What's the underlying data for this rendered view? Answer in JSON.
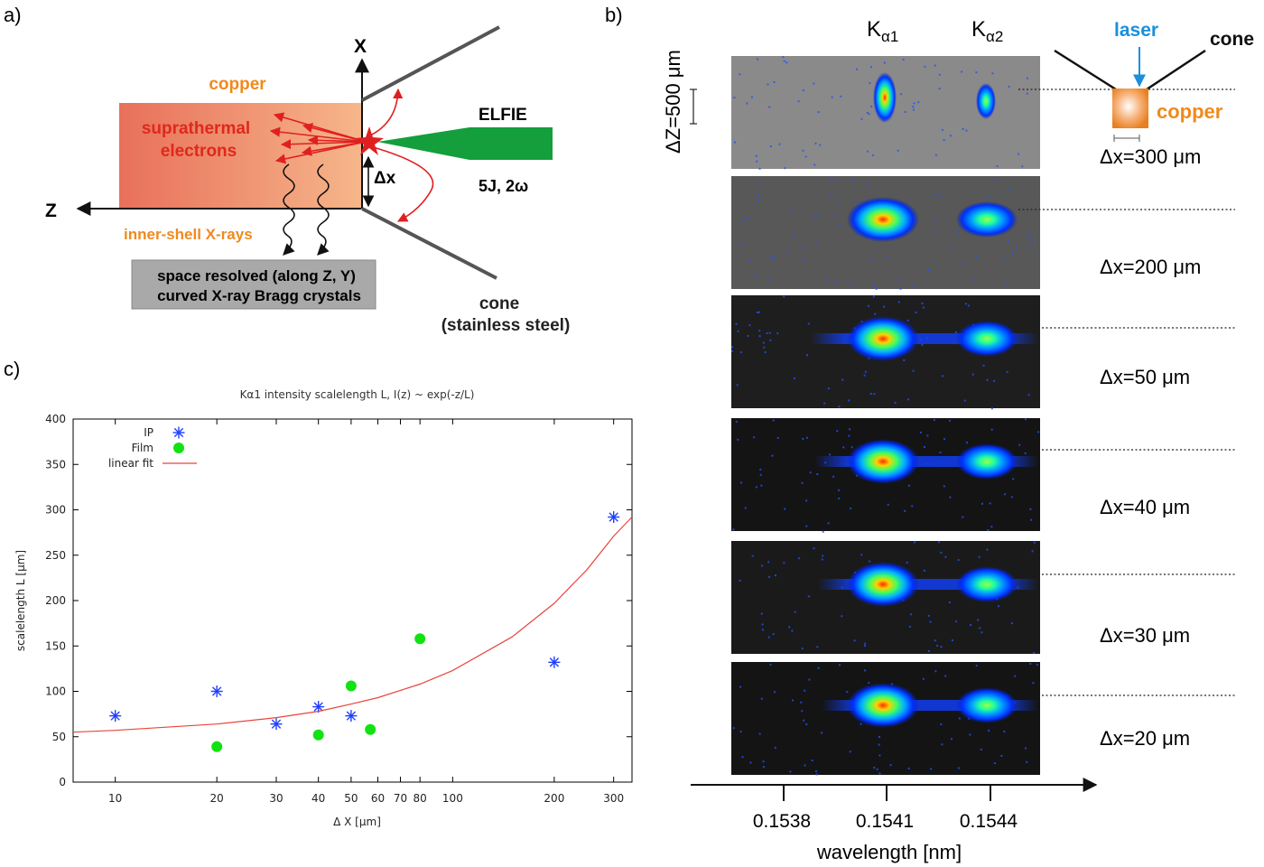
{
  "panel_a": {
    "label": "a)",
    "axis_x": "X",
    "axis_z": "Z",
    "copper": "copper",
    "suprathermal_line1": "suprathermal",
    "suprathermal_line2": "electrons",
    "elfie": "ELFIE",
    "laser_energy": "5J, 2ω",
    "delta_x": "Δx",
    "inner_shell": "inner-shell X-rays",
    "crystal_line1": "space resolved (along Z, Y)",
    "crystal_line2": "curved X-ray Bragg crystals",
    "cone_line1": "cone",
    "cone_line2": "(stainless steel)"
  },
  "panel_b": {
    "label": "b)",
    "ka1": "K",
    "ka1_sub": "α1",
    "ka2": "K",
    "ka2_sub": "α2",
    "delta_z": "ΔZ=500 μm",
    "laser": "laser",
    "cone": "cone",
    "copper": "copper",
    "xlabel": "wavelength [nm]",
    "xticks": [
      "0.1538",
      "0.1541",
      "0.1544"
    ],
    "strips": [
      {
        "label": "Δx=300 μm"
      },
      {
        "label": "Δx=200 μm"
      },
      {
        "label": "Δx=50 μm"
      },
      {
        "label": "Δx=40 μm"
      },
      {
        "label": "Δx=30 μm"
      },
      {
        "label": "Δx=20 μm"
      }
    ]
  },
  "panel_c": {
    "label": "c)"
  },
  "chart_data": {
    "type": "scatter",
    "title": "Kα1 intensity scalelength L,  I(z) ~ exp(-z/L)",
    "xlabel": "Δ X [μm]",
    "ylabel": "scalelength L [μm]",
    "x_scale": "log",
    "xlim": [
      7.5,
      340
    ],
    "ylim": [
      0,
      400
    ],
    "xticks": [
      10,
      20,
      30,
      40,
      50,
      60,
      70,
      80,
      100,
      200,
      300
    ],
    "yticks": [
      0,
      50,
      100,
      150,
      200,
      250,
      300,
      350,
      400
    ],
    "legend": "top-left",
    "series": [
      {
        "name": "IP",
        "marker": "asterisk",
        "color": "#1f3fff",
        "x": [
          10,
          20,
          30,
          40,
          50,
          200,
          300
        ],
        "y": [
          73,
          100,
          64,
          83,
          73,
          132,
          292
        ]
      },
      {
        "name": "Film",
        "marker": "circle",
        "color": "#12e212",
        "x": [
          20,
          40,
          50,
          57,
          80
        ],
        "y": [
          39,
          52,
          106,
          58,
          158
        ]
      },
      {
        "name": "linear fit",
        "marker": "line",
        "color": "#e8453c",
        "x": [
          7.5,
          10,
          20,
          30,
          40,
          50,
          60,
          80,
          100,
          150,
          200,
          250,
          300,
          340
        ],
        "y": [
          55,
          57,
          64,
          71,
          78,
          86,
          93,
          108,
          123,
          160,
          197,
          234,
          271,
          292
        ]
      }
    ]
  }
}
